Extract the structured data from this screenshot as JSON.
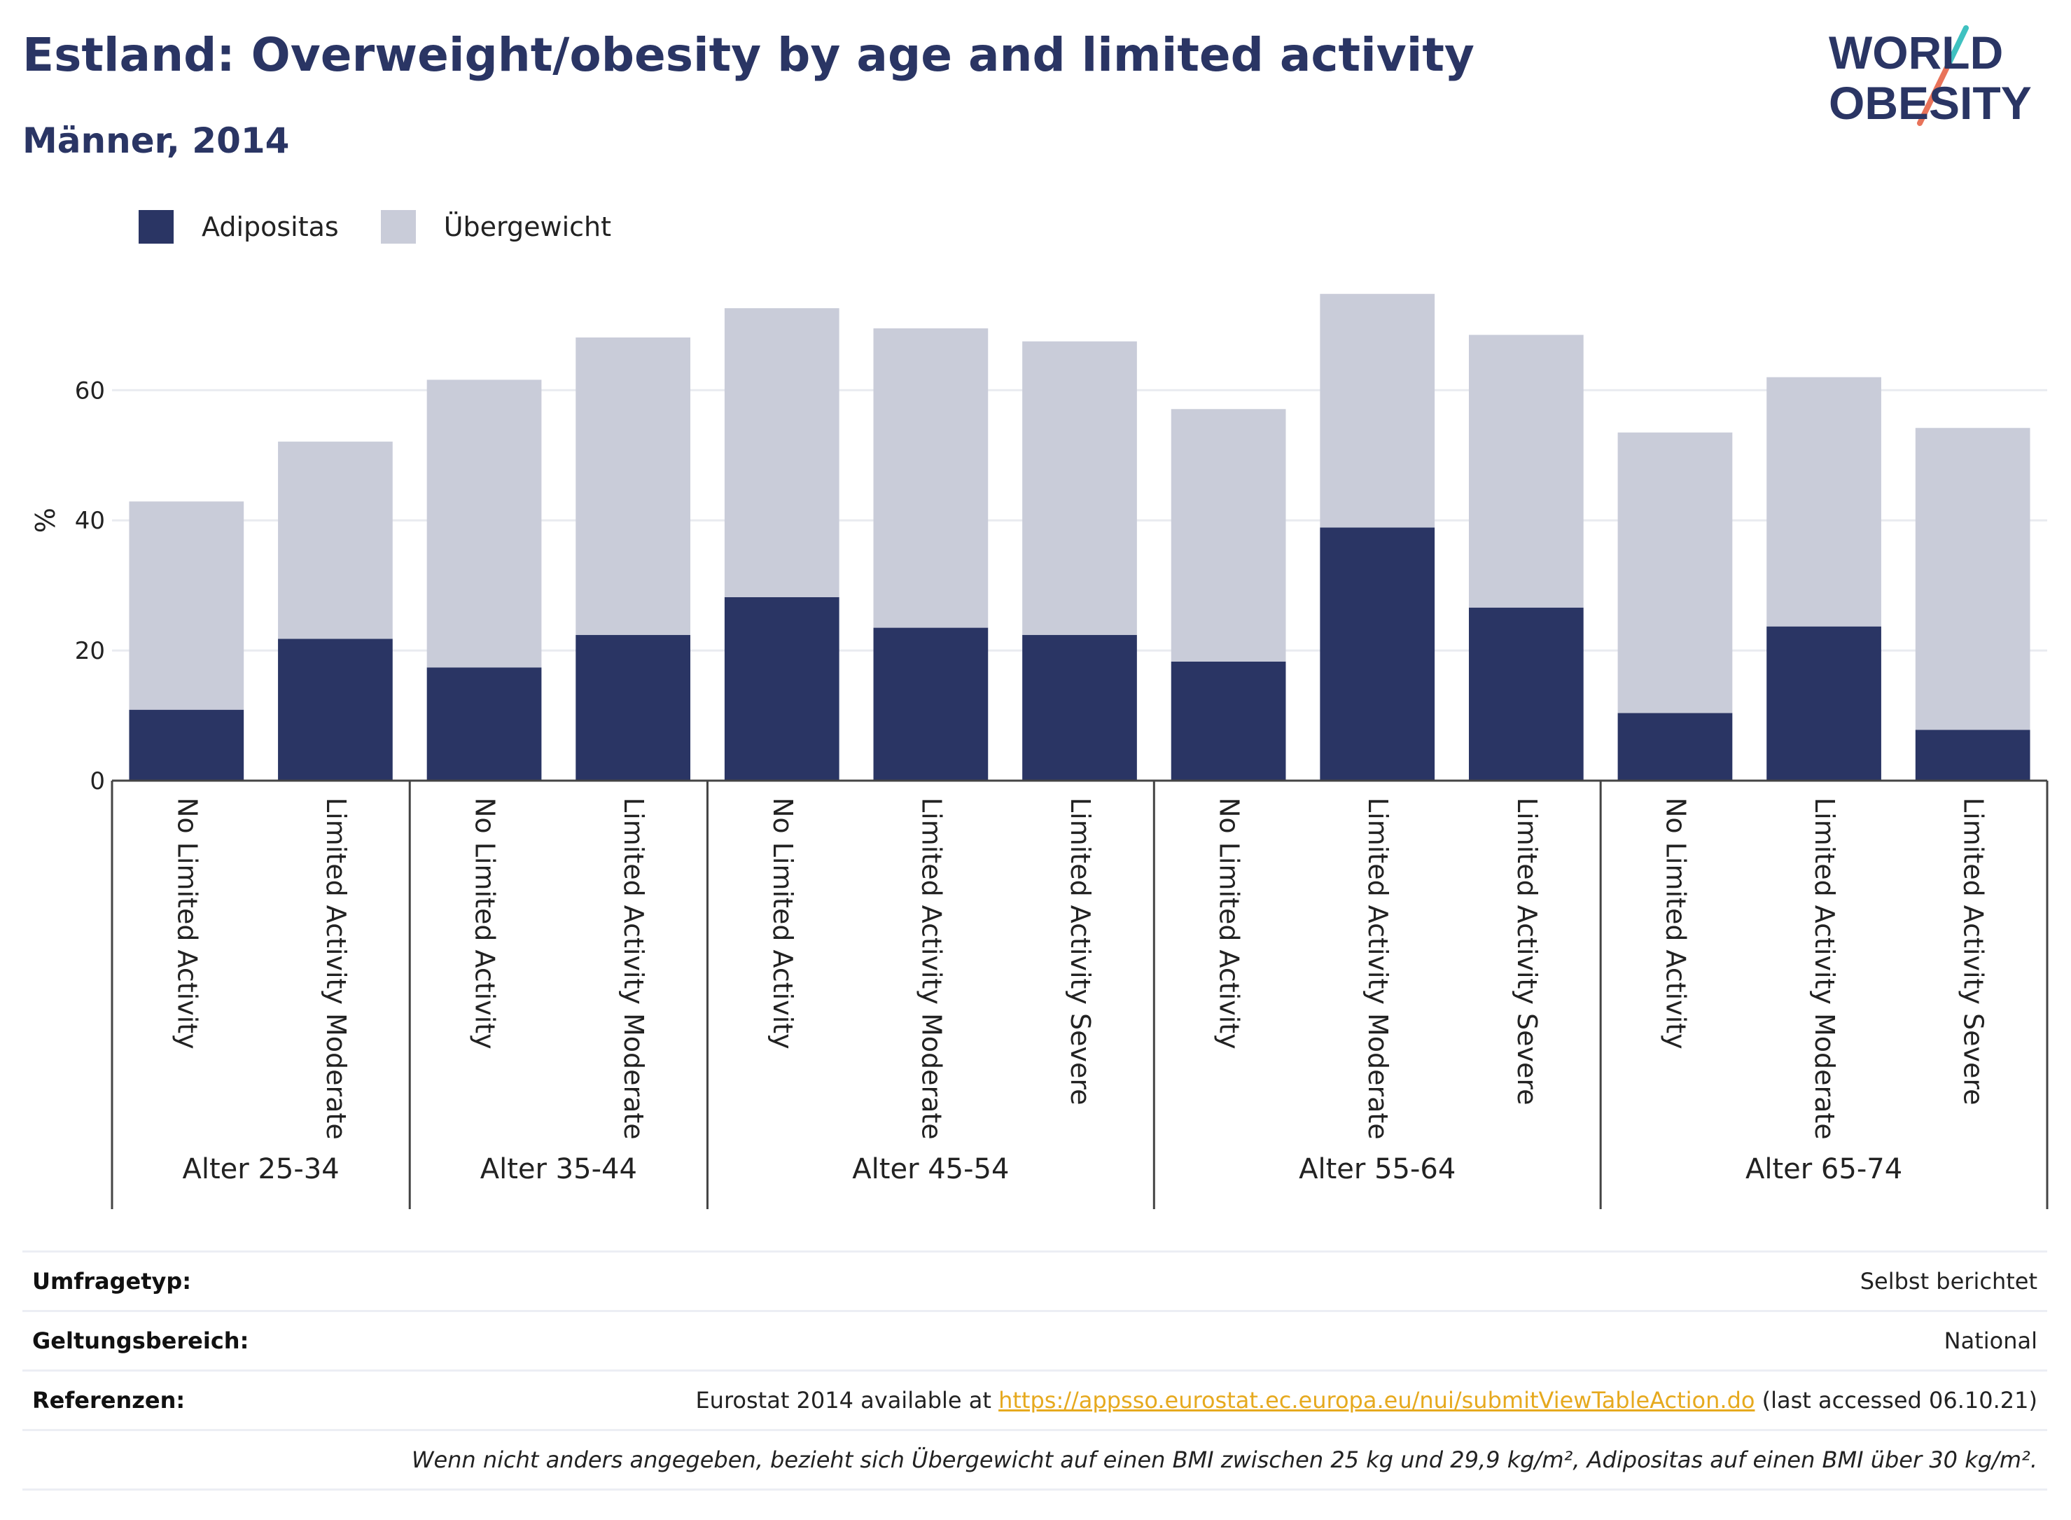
{
  "title": "Estland: Overweight/obesity by age and limited activity",
  "subtitle": "Männer, 2014",
  "logo": {
    "line1": "WORLD",
    "line2": "OBESITY",
    "colors": {
      "text": "#2a3564",
      "slash_top": "#3fc1c0",
      "slash_bottom": "#e8735a"
    }
  },
  "legend": [
    {
      "label": "Adipositas",
      "color": "#2a3564"
    },
    {
      "label": "Übergewicht",
      "color": "#c9ccd9"
    }
  ],
  "chart_data": {
    "type": "bar",
    "stacked": true,
    "ylabel": "%",
    "ylim": [
      0,
      78
    ],
    "yticks": [
      0,
      20,
      40,
      60
    ],
    "grid": true,
    "legend_position": "top-left",
    "categories": [
      "No Limited Activity",
      "Limited Activity Moderate",
      "No Limited Activity",
      "Limited Activity Moderate",
      "No Limited Activity",
      "Limited Activity Moderate",
      "Limited Activity Severe",
      "No Limited Activity",
      "Limited Activity Moderate",
      "Limited Activity Severe",
      "No Limited Activity",
      "Limited Activity Moderate",
      "Limited Activity Severe"
    ],
    "groups": [
      {
        "label": "Alter 25-34",
        "count": 2
      },
      {
        "label": "Alter 35-44",
        "count": 2
      },
      {
        "label": "Alter 45-54",
        "count": 3
      },
      {
        "label": "Alter 55-64",
        "count": 3
      },
      {
        "label": "Alter 65-74",
        "count": 3
      }
    ],
    "series": [
      {
        "name": "Adipositas",
        "color": "#2a3564",
        "values": [
          10.9,
          21.8,
          17.4,
          22.4,
          28.2,
          23.5,
          22.4,
          18.3,
          38.9,
          26.6,
          10.4,
          23.7,
          7.8
        ]
      },
      {
        "name": "Übergewicht",
        "color": "#c9ccd9",
        "values": [
          32.0,
          30.3,
          44.2,
          45.7,
          44.4,
          46.0,
          45.1,
          38.8,
          35.9,
          41.9,
          43.1,
          38.3,
          46.4
        ]
      }
    ]
  },
  "meta": {
    "survey_label": "Umfragetyp:",
    "survey_value": "Selbst berichtet",
    "scope_label": "Geltungsbereich:",
    "scope_value": "National",
    "refs_label": "Referenzen:",
    "refs_prefix": "Eurostat 2014 available at ",
    "refs_link": "https://appsso.eurostat.ec.europa.eu/nui/submitViewTableAction.do",
    "refs_suffix": " (last accessed 06.10.21)",
    "note": "Wenn nicht anders angegeben, bezieht sich Übergewicht auf einen BMI zwischen 25 kg und 29,9 kg/m², Adipositas auf einen BMI über 30 kg/m²."
  }
}
